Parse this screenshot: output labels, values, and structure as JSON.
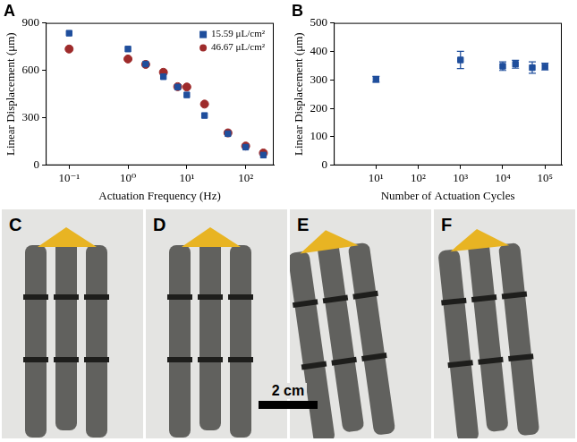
{
  "chart_data": [
    {
      "type": "scatter",
      "title": "A",
      "x_label": "Actuation Frequency (Hz)",
      "y_label": "Linear Displacement (μm)",
      "log": "x",
      "grid": false,
      "legend": "upper right",
      "xlim": [
        0.04,
        300
      ],
      "xticks": [
        {
          "value": 0.1,
          "label": "10⁻¹"
        },
        {
          "value": 1,
          "label": "10⁰"
        },
        {
          "value": 10,
          "label": "10¹"
        },
        {
          "value": 100,
          "label": "10²"
        }
      ],
      "ylim": [
        0,
        900
      ],
      "yticks": [
        0,
        300,
        600,
        900
      ],
      "x": [
        0.1,
        1,
        2,
        4,
        7,
        10,
        20,
        50,
        100,
        200
      ],
      "series": [
        {
          "name": "15.59 μL/cm²",
          "color": "#1f4e9c",
          "marker": "square",
          "values": [
            835,
            735,
            640,
            560,
            495,
            445,
            315,
            200,
            115,
            65
          ]
        },
        {
          "name": "46.67 μL/cm²",
          "color": "#9e2b2b",
          "marker": "circle",
          "values": [
            735,
            672,
            638,
            588,
            497,
            495,
            387,
            205,
            122,
            78
          ]
        }
      ]
    },
    {
      "type": "scatter",
      "title": "B",
      "x_label": "Number of Actuation Cycles",
      "y_label": "Linear Displacement (μm)",
      "log": "x",
      "grid": false,
      "xlim": [
        1,
        250000
      ],
      "xticks": [
        {
          "value": 10,
          "label": "10¹"
        },
        {
          "value": 100,
          "label": "10²"
        },
        {
          "value": 1000,
          "label": "10³"
        },
        {
          "value": 10000,
          "label": "10⁴"
        },
        {
          "value": 100000,
          "label": "10⁵"
        }
      ],
      "ylim": [
        0,
        500
      ],
      "yticks": [
        0,
        100,
        200,
        300,
        400,
        500
      ],
      "x": [
        10,
        1000,
        10000,
        20000,
        50000,
        100000
      ],
      "series": [
        {
          "color": "#1f4e9c",
          "marker": "square",
          "values": [
            302,
            370,
            348,
            355,
            343,
            347
          ],
          "errors": [
            10,
            30,
            15,
            14,
            20,
            12
          ]
        }
      ]
    }
  ],
  "photos": {
    "panels": [
      "C",
      "D",
      "E",
      "F"
    ],
    "scale_bar": "2 cm"
  }
}
